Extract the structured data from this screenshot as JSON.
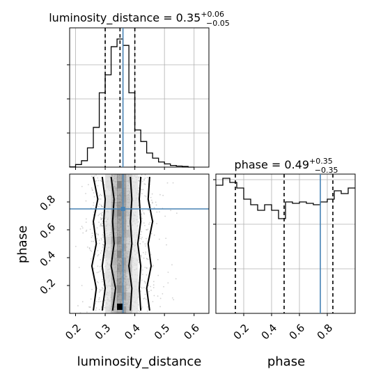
{
  "chart_data": {
    "type": "corner",
    "colors": {
      "truth": "#4682b4",
      "line": "#000000",
      "grid": "#b0b0b0",
      "scatter": "#9a9a9a"
    },
    "truths": {
      "luminosity_distance": 0.36,
      "phase": 0.75
    },
    "panels": {
      "ld_hist": {
        "type": "step-histogram",
        "title": {
          "main": "luminosity_distance = 0.35",
          "sup": "+0.06",
          "sub": "−0.05"
        },
        "xlim": [
          0.18,
          0.65
        ],
        "bin_edges": [
          0.18,
          0.2,
          0.22,
          0.24,
          0.26,
          0.28,
          0.3,
          0.32,
          0.34,
          0.36,
          0.38,
          0.4,
          0.42,
          0.44,
          0.46,
          0.48,
          0.5,
          0.52,
          0.54,
          0.56,
          0.58,
          0.6
        ],
        "counts": [
          0.002,
          0.02,
          0.05,
          0.15,
          0.31,
          0.58,
          0.72,
          0.94,
          1.0,
          0.95,
          0.58,
          0.29,
          0.2,
          0.11,
          0.07,
          0.04,
          0.025,
          0.013,
          0.008,
          0.005,
          0.0
        ],
        "quantiles": [
          0.3,
          0.35,
          0.4
        ]
      },
      "phase_hist": {
        "type": "step-histogram",
        "title": {
          "main": "phase = 0.49",
          "sup": "+0.35",
          "sub": "−0.35"
        },
        "xlim": [
          0.0,
          1.0
        ],
        "bin_edges": [
          0.0,
          0.05,
          0.1,
          0.15,
          0.2,
          0.25,
          0.3,
          0.35,
          0.4,
          0.45,
          0.5,
          0.55,
          0.6,
          0.65,
          0.7,
          0.75,
          0.8,
          0.85,
          0.9,
          0.95,
          1.0
        ],
        "counts": [
          0.92,
          0.97,
          0.94,
          0.9,
          0.82,
          0.78,
          0.74,
          0.78,
          0.74,
          0.68,
          0.8,
          0.79,
          0.8,
          0.79,
          0.78,
          0.8,
          0.82,
          0.88,
          0.86,
          0.9
        ],
        "quantiles": [
          0.14,
          0.49,
          0.84
        ]
      },
      "joint": {
        "type": "2d-histogram-contour",
        "xlim": [
          0.18,
          0.65
        ],
        "ylim": [
          0.0,
          1.0
        ],
        "x_range": [
          0.2,
          0.6
        ]
      }
    },
    "axes": {
      "x_label": "luminosity_distance",
      "y_label": "phase",
      "ld_ticks": [
        "0.2",
        "0.3",
        "0.4",
        "0.5",
        "0.6"
      ],
      "phase_ticks": [
        "0.2",
        "0.4",
        "0.6",
        "0.8"
      ]
    }
  }
}
